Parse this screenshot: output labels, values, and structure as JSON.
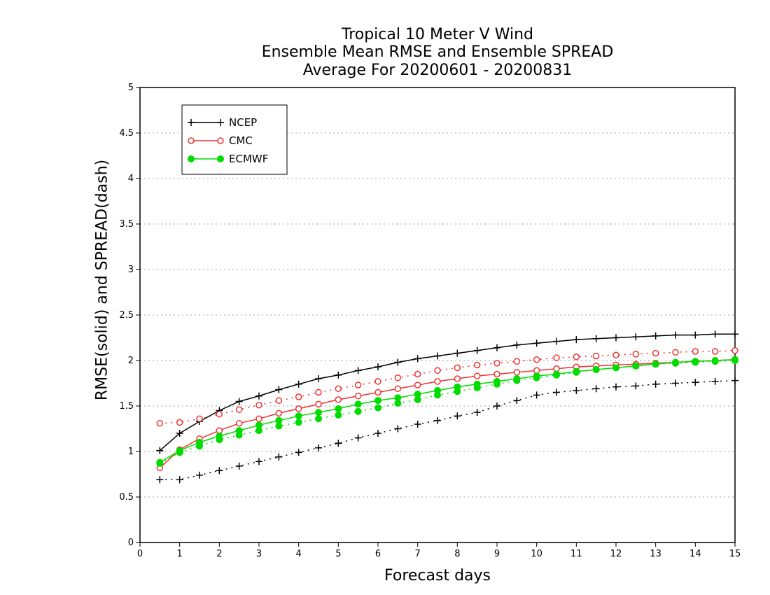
{
  "chart_data": {
    "type": "line",
    "title": [
      "Tropical 10 Meter V Wind",
      "Ensemble Mean RMSE and Ensemble SPREAD",
      "Average For 20200601 - 20200831"
    ],
    "xlabel": "Forecast days",
    "ylabel": "RMSE(solid) and SPREAD(dash)",
    "xlim": [
      0,
      15
    ],
    "ylim": [
      0,
      5
    ],
    "xticks": [
      0,
      1,
      2,
      3,
      4,
      5,
      6,
      7,
      8,
      9,
      10,
      11,
      12,
      13,
      14,
      15
    ],
    "yticks": [
      0,
      0.5,
      1,
      1.5,
      2,
      2.5,
      3,
      3.5,
      4,
      4.5,
      5
    ],
    "ytick_labels": [
      "0",
      "0.5",
      "1",
      "1.5",
      "2",
      "2.5",
      "3",
      "3.5",
      "4",
      "4.5",
      "5"
    ],
    "grid": "horizontal dotted",
    "legend_position": "top-left",
    "x": [
      0.5,
      1,
      1.5,
      2,
      2.5,
      3,
      3.5,
      4,
      4.5,
      5,
      5.5,
      6,
      6.5,
      7,
      7.5,
      8,
      8.5,
      9,
      9.5,
      10,
      10.5,
      11,
      11.5,
      12,
      12.5,
      13,
      13.5,
      14,
      14.5,
      15
    ],
    "series": [
      {
        "name": "NCEP",
        "color": "#000000",
        "marker": "plus",
        "rmse": [
          1.01,
          1.2,
          1.33,
          1.45,
          1.55,
          1.61,
          1.68,
          1.74,
          1.8,
          1.84,
          1.89,
          1.93,
          1.98,
          2.02,
          2.05,
          2.08,
          2.11,
          2.14,
          2.17,
          2.19,
          2.21,
          2.23,
          2.24,
          2.25,
          2.26,
          2.27,
          2.28,
          2.28,
          2.29,
          2.29
        ],
        "spread": [
          0.69,
          0.69,
          0.74,
          0.79,
          0.84,
          0.89,
          0.94,
          0.99,
          1.04,
          1.09,
          1.15,
          1.2,
          1.25,
          1.3,
          1.34,
          1.39,
          1.43,
          1.5,
          1.56,
          1.62,
          1.65,
          1.67,
          1.69,
          1.71,
          1.72,
          1.74,
          1.75,
          1.76,
          1.77,
          1.78
        ]
      },
      {
        "name": "CMC",
        "color": "#f03232",
        "marker": "open-circle",
        "rmse": [
          0.82,
          1.02,
          1.14,
          1.23,
          1.31,
          1.36,
          1.42,
          1.47,
          1.52,
          1.57,
          1.61,
          1.65,
          1.69,
          1.73,
          1.77,
          1.8,
          1.83,
          1.85,
          1.87,
          1.89,
          1.91,
          1.93,
          1.94,
          1.95,
          1.96,
          1.97,
          1.98,
          1.99,
          2.0,
          2.01
        ],
        "spread": [
          1.31,
          1.32,
          1.36,
          1.41,
          1.46,
          1.51,
          1.56,
          1.6,
          1.65,
          1.69,
          1.73,
          1.77,
          1.81,
          1.85,
          1.89,
          1.92,
          1.95,
          1.97,
          1.99,
          2.01,
          2.03,
          2.04,
          2.05,
          2.06,
          2.07,
          2.08,
          2.09,
          2.1,
          2.1,
          2.11
        ]
      },
      {
        "name": "ECMWF",
        "color": "#00dc00",
        "marker": "filled-circle",
        "rmse": [
          0.88,
          1.01,
          1.1,
          1.17,
          1.23,
          1.29,
          1.34,
          1.39,
          1.43,
          1.47,
          1.52,
          1.56,
          1.59,
          1.63,
          1.67,
          1.71,
          1.74,
          1.77,
          1.8,
          1.83,
          1.85,
          1.88,
          1.9,
          1.92,
          1.94,
          1.96,
          1.98,
          1.99,
          2.0,
          2.01
        ],
        "spread": [
          0.87,
          0.99,
          1.06,
          1.13,
          1.18,
          1.23,
          1.28,
          1.32,
          1.36,
          1.4,
          1.44,
          1.48,
          1.53,
          1.57,
          1.62,
          1.66,
          1.7,
          1.74,
          1.78,
          1.81,
          1.84,
          1.87,
          1.9,
          1.92,
          1.94,
          1.96,
          1.97,
          1.98,
          1.99,
          2.0
        ]
      }
    ]
  }
}
